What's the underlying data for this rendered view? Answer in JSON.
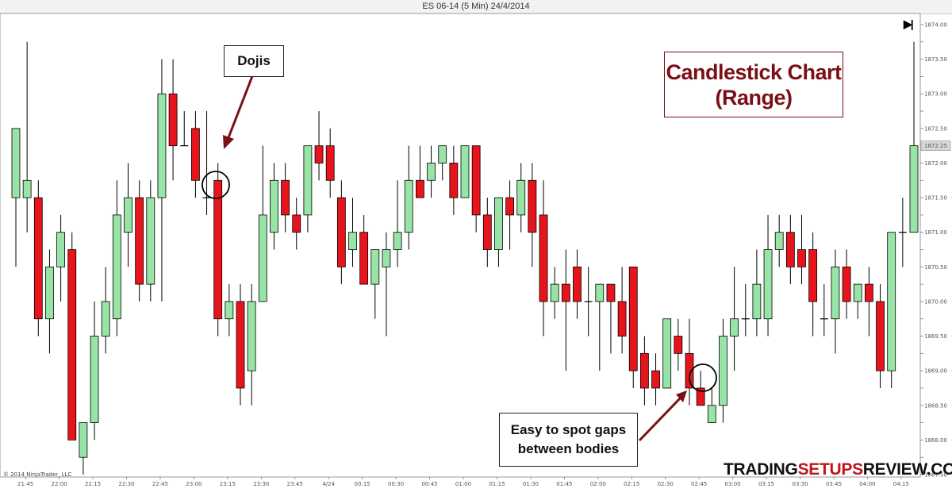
{
  "window_title": "ES 06-14 (5 Min)  24/4/2014",
  "chart_title": {
    "line1": "Candlestick Chart",
    "line2": "(Range)"
  },
  "annotations": {
    "dojis": "Dojis",
    "gaps_line1": "Easy to spot gaps",
    "gaps_line2": "between bodies"
  },
  "watermark": {
    "part1": "TRADING",
    "part2": "SETUPS",
    "part3": "REVIEW.COM"
  },
  "copyright": "© 2014 NinjaTrader, LLC",
  "end_button_icon": "skip-to-end-icon",
  "colors": {
    "up": "#98e3a6",
    "down": "#e8141c",
    "wick": "#000000",
    "annotation_arrow": "#7a0f16",
    "title": "#7a0f16"
  },
  "chart_data": {
    "type": "candlestick",
    "instrument": "ES 06-14",
    "interval": "5 Min",
    "date": "24/4/2014",
    "ylim": [
      1867.25,
      1874.1
    ],
    "y_ticks": [
      "1874.00",
      "1873.75",
      "1873.50",
      "1873.25",
      "1873.00",
      "1872.75",
      "1872.50",
      "1872.25",
      "1872.00",
      "1871.75",
      "1871.50",
      "1871.25",
      "1871.00",
      "1870.75",
      "1870.50",
      "1870.25",
      "1870.00",
      "1869.75",
      "1869.50",
      "1869.25",
      "1869.00",
      "1868.75",
      "1868.50",
      "1868.25",
      "1868.00",
      "1867.75",
      "1867.50"
    ],
    "y_labels_shown": [
      "1874.00",
      "1873.50",
      "1873.00",
      "1872.50",
      "1872.00",
      "1871.50",
      "1871.00",
      "1870.50",
      "1870.00",
      "1869.50",
      "1869.00",
      "1868.50",
      "1868.00",
      "1867.50"
    ],
    "last_price_label": "1872.25",
    "x_labels": [
      "21:45",
      "22:00",
      "22:15",
      "22:30",
      "22:45",
      "23:00",
      "23:15",
      "23:30",
      "23:45",
      "4/24",
      "00:15",
      "00:30",
      "00:45",
      "01:00",
      "01:15",
      "01:30",
      "01:45",
      "02:00",
      "02:15",
      "02:30",
      "02:45",
      "03:00",
      "03:15",
      "03:30",
      "03:45",
      "04:00",
      "04:15"
    ],
    "candles": [
      {
        "o": 1871.5,
        "h": 1872.5,
        "l": 1870.5,
        "c": 1872.5
      },
      {
        "o": 1871.5,
        "h": 1873.75,
        "l": 1871.0,
        "c": 1871.75
      },
      {
        "o": 1871.5,
        "h": 1871.75,
        "l": 1869.5,
        "c": 1869.75
      },
      {
        "o": 1869.75,
        "h": 1870.75,
        "l": 1869.25,
        "c": 1870.5
      },
      {
        "o": 1870.5,
        "h": 1871.25,
        "l": 1870.0,
        "c": 1871.0
      },
      {
        "o": 1870.75,
        "h": 1871.0,
        "l": 1868.0,
        "c": 1868.0
      },
      {
        "o": 1867.75,
        "h": 1868.25,
        "l": 1867.5,
        "c": 1868.25
      },
      {
        "o": 1868.25,
        "h": 1870.0,
        "l": 1868.0,
        "c": 1869.5
      },
      {
        "o": 1869.5,
        "h": 1870.5,
        "l": 1869.25,
        "c": 1870.0
      },
      {
        "o": 1869.75,
        "h": 1871.75,
        "l": 1869.5,
        "c": 1871.25
      },
      {
        "o": 1871.0,
        "h": 1872.0,
        "l": 1870.5,
        "c": 1871.5
      },
      {
        "o": 1871.5,
        "h": 1871.75,
        "l": 1870.0,
        "c": 1870.25
      },
      {
        "o": 1870.25,
        "h": 1871.75,
        "l": 1870.0,
        "c": 1871.5
      },
      {
        "o": 1871.5,
        "h": 1873.5,
        "l": 1870.0,
        "c": 1873.0
      },
      {
        "o": 1873.0,
        "h": 1873.5,
        "l": 1871.75,
        "c": 1872.25
      },
      {
        "o": 1872.25,
        "h": 1872.75,
        "l": 1872.25,
        "c": 1872.25
      },
      {
        "o": 1872.5,
        "h": 1872.75,
        "l": 1871.5,
        "c": 1871.75
      },
      {
        "o": 1871.5,
        "h": 1872.75,
        "l": 1871.25,
        "c": 1871.5
      },
      {
        "o": 1871.75,
        "h": 1872.0,
        "l": 1869.5,
        "c": 1869.75
      },
      {
        "o": 1869.75,
        "h": 1870.25,
        "l": 1869.5,
        "c": 1870.0
      },
      {
        "o": 1870.0,
        "h": 1870.25,
        "l": 1868.5,
        "c": 1868.75
      },
      {
        "o": 1869.0,
        "h": 1870.25,
        "l": 1868.5,
        "c": 1870.0
      },
      {
        "o": 1870.0,
        "h": 1872.25,
        "l": 1870.0,
        "c": 1871.25
      },
      {
        "o": 1871.0,
        "h": 1872.0,
        "l": 1870.75,
        "c": 1871.75
      },
      {
        "o": 1871.75,
        "h": 1872.0,
        "l": 1871.0,
        "c": 1871.25
      },
      {
        "o": 1871.25,
        "h": 1871.5,
        "l": 1870.75,
        "c": 1871.0
      },
      {
        "o": 1871.25,
        "h": 1872.25,
        "l": 1871.0,
        "c": 1872.25
      },
      {
        "o": 1872.25,
        "h": 1872.75,
        "l": 1871.75,
        "c": 1872.0
      },
      {
        "o": 1872.25,
        "h": 1872.5,
        "l": 1871.5,
        "c": 1871.75
      },
      {
        "o": 1871.5,
        "h": 1871.75,
        "l": 1870.25,
        "c": 1870.5
      },
      {
        "o": 1870.75,
        "h": 1871.5,
        "l": 1870.5,
        "c": 1871.0
      },
      {
        "o": 1871.0,
        "h": 1871.25,
        "l": 1870.25,
        "c": 1870.25
      },
      {
        "o": 1870.25,
        "h": 1870.75,
        "l": 1869.75,
        "c": 1870.75
      },
      {
        "o": 1870.5,
        "h": 1871.0,
        "l": 1869.5,
        "c": 1870.75
      },
      {
        "o": 1870.75,
        "h": 1871.75,
        "l": 1870.5,
        "c": 1871.0
      },
      {
        "o": 1871.0,
        "h": 1872.25,
        "l": 1870.75,
        "c": 1871.75
      },
      {
        "o": 1871.75,
        "h": 1872.25,
        "l": 1871.5,
        "c": 1871.5
      },
      {
        "o": 1871.75,
        "h": 1872.25,
        "l": 1871.5,
        "c": 1872.0
      },
      {
        "o": 1872.0,
        "h": 1872.25,
        "l": 1871.75,
        "c": 1872.25
      },
      {
        "o": 1872.0,
        "h": 1872.25,
        "l": 1871.25,
        "c": 1871.5
      },
      {
        "o": 1871.5,
        "h": 1872.25,
        "l": 1871.5,
        "c": 1872.25
      },
      {
        "o": 1872.25,
        "h": 1872.25,
        "l": 1871.0,
        "c": 1871.25
      },
      {
        "o": 1871.25,
        "h": 1871.5,
        "l": 1870.5,
        "c": 1870.75
      },
      {
        "o": 1870.75,
        "h": 1871.5,
        "l": 1870.5,
        "c": 1871.5
      },
      {
        "o": 1871.5,
        "h": 1871.75,
        "l": 1870.75,
        "c": 1871.25
      },
      {
        "o": 1871.25,
        "h": 1872.0,
        "l": 1871.0,
        "c": 1871.75
      },
      {
        "o": 1871.75,
        "h": 1872.0,
        "l": 1870.5,
        "c": 1871.0
      },
      {
        "o": 1871.25,
        "h": 1871.75,
        "l": 1869.5,
        "c": 1870.0
      },
      {
        "o": 1870.0,
        "h": 1870.5,
        "l": 1869.75,
        "c": 1870.25
      },
      {
        "o": 1870.25,
        "h": 1870.75,
        "l": 1869.0,
        "c": 1870.0
      },
      {
        "o": 1870.5,
        "h": 1870.75,
        "l": 1869.75,
        "c": 1870.0
      },
      {
        "o": 1870.0,
        "h": 1870.5,
        "l": 1869.5,
        "c": 1870.0
      },
      {
        "o": 1870.0,
        "h": 1870.25,
        "l": 1869.0,
        "c": 1870.25
      },
      {
        "o": 1870.25,
        "h": 1870.25,
        "l": 1869.25,
        "c": 1870.0
      },
      {
        "o": 1870.0,
        "h": 1870.5,
        "l": 1869.25,
        "c": 1869.5
      },
      {
        "o": 1870.5,
        "h": 1870.5,
        "l": 1868.75,
        "c": 1869.0
      },
      {
        "o": 1869.25,
        "h": 1869.5,
        "l": 1868.5,
        "c": 1868.75
      },
      {
        "o": 1869.0,
        "h": 1869.25,
        "l": 1868.5,
        "c": 1868.75
      },
      {
        "o": 1868.75,
        "h": 1869.75,
        "l": 1868.75,
        "c": 1869.75
      },
      {
        "o": 1869.5,
        "h": 1869.75,
        "l": 1869.0,
        "c": 1869.25
      },
      {
        "o": 1869.25,
        "h": 1869.75,
        "l": 1868.5,
        "c": 1868.75
      },
      {
        "o": 1868.75,
        "h": 1869.0,
        "l": 1868.5,
        "c": 1868.5
      },
      {
        "o": 1868.25,
        "h": 1868.75,
        "l": 1868.25,
        "c": 1868.5
      },
      {
        "o": 1868.5,
        "h": 1869.75,
        "l": 1868.25,
        "c": 1869.5
      },
      {
        "o": 1869.5,
        "h": 1870.5,
        "l": 1869.0,
        "c": 1869.75
      },
      {
        "o": 1869.75,
        "h": 1870.25,
        "l": 1869.5,
        "c": 1869.75
      },
      {
        "o": 1869.75,
        "h": 1870.75,
        "l": 1869.5,
        "c": 1870.25
      },
      {
        "o": 1869.75,
        "h": 1871.25,
        "l": 1869.5,
        "c": 1870.75
      },
      {
        "o": 1870.75,
        "h": 1871.25,
        "l": 1870.5,
        "c": 1871.0
      },
      {
        "o": 1871.0,
        "h": 1871.25,
        "l": 1870.25,
        "c": 1870.5
      },
      {
        "o": 1870.75,
        "h": 1871.25,
        "l": 1870.25,
        "c": 1870.5
      },
      {
        "o": 1870.75,
        "h": 1871.0,
        "l": 1869.5,
        "c": 1870.0
      },
      {
        "o": 1869.75,
        "h": 1870.25,
        "l": 1869.5,
        "c": 1869.75
      },
      {
        "o": 1869.75,
        "h": 1870.75,
        "l": 1869.25,
        "c": 1870.5
      },
      {
        "o": 1870.5,
        "h": 1870.75,
        "l": 1869.75,
        "c": 1870.0
      },
      {
        "o": 1870.0,
        "h": 1870.25,
        "l": 1869.75,
        "c": 1870.25
      },
      {
        "o": 1870.25,
        "h": 1870.5,
        "l": 1869.5,
        "c": 1870.0
      },
      {
        "o": 1870.0,
        "h": 1870.25,
        "l": 1868.75,
        "c": 1869.0
      },
      {
        "o": 1869.0,
        "h": 1871.0,
        "l": 1868.75,
        "c": 1871.0
      },
      {
        "o": 1871.0,
        "h": 1871.5,
        "l": 1870.5,
        "c": 1871.0
      },
      {
        "o": 1871.0,
        "h": 1873.75,
        "l": 1871.0,
        "c": 1872.25
      }
    ]
  }
}
